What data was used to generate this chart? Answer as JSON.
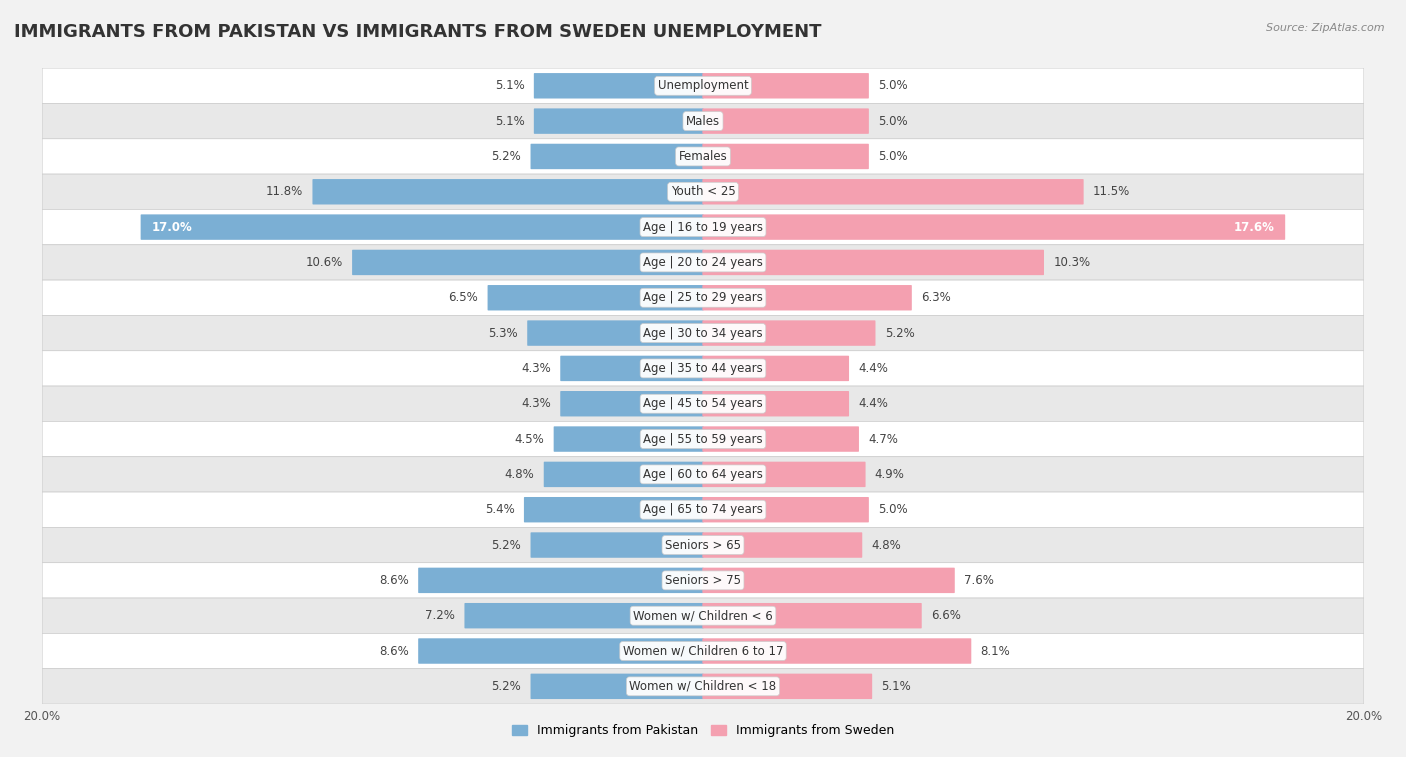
{
  "title": "IMMIGRANTS FROM PAKISTAN VS IMMIGRANTS FROM SWEDEN UNEMPLOYMENT",
  "source": "Source: ZipAtlas.com",
  "categories": [
    "Unemployment",
    "Males",
    "Females",
    "Youth < 25",
    "Age | 16 to 19 years",
    "Age | 20 to 24 years",
    "Age | 25 to 29 years",
    "Age | 30 to 34 years",
    "Age | 35 to 44 years",
    "Age | 45 to 54 years",
    "Age | 55 to 59 years",
    "Age | 60 to 64 years",
    "Age | 65 to 74 years",
    "Seniors > 65",
    "Seniors > 75",
    "Women w/ Children < 6",
    "Women w/ Children 6 to 17",
    "Women w/ Children < 18"
  ],
  "pakistan_values": [
    5.1,
    5.1,
    5.2,
    11.8,
    17.0,
    10.6,
    6.5,
    5.3,
    4.3,
    4.3,
    4.5,
    4.8,
    5.4,
    5.2,
    8.6,
    7.2,
    8.6,
    5.2
  ],
  "sweden_values": [
    5.0,
    5.0,
    5.0,
    11.5,
    17.6,
    10.3,
    6.3,
    5.2,
    4.4,
    4.4,
    4.7,
    4.9,
    5.0,
    4.8,
    7.6,
    6.6,
    8.1,
    5.1
  ],
  "pakistan_color": "#7BAFD4",
  "sweden_color": "#F4A0B0",
  "pakistan_label": "Immigrants from Pakistan",
  "sweden_label": "Immigrants from Sweden",
  "xlim": 20.0,
  "bar_height": 0.68,
  "background_color": "#f2f2f2",
  "row_colors_even": "#ffffff",
  "row_colors_odd": "#e8e8e8",
  "axis_label": "20.0%",
  "title_fontsize": 13,
  "label_fontsize": 8.5,
  "value_fontsize": 8.5,
  "cat_fontsize": 8.5
}
